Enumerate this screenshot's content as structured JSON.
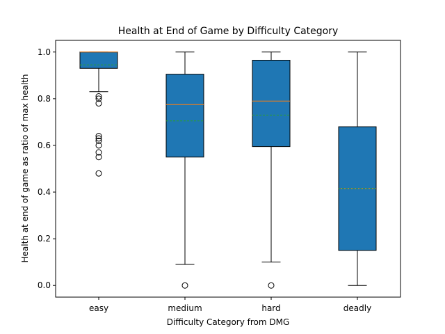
{
  "chart_data": {
    "type": "box",
    "title": "Health at End of Game by Difficulty Category",
    "xlabel": "Difficulty Category from DMG",
    "ylabel": "Health at end of game as ratio of max health",
    "ylim": [
      -0.05,
      1.05
    ],
    "yticks": [
      "0.0",
      "0.2",
      "0.4",
      "0.6",
      "0.8",
      "1.0"
    ],
    "grid": false,
    "colors": {
      "box_fill": "#1f77b4",
      "median": "#ff7f0e",
      "mean": "#2ca02c",
      "line": "#000000"
    },
    "categories": [
      "easy",
      "medium",
      "hard",
      "deadly"
    ],
    "boxes": [
      {
        "category": "easy",
        "whisker_low": 0.83,
        "q1": 0.93,
        "median": 1.0,
        "mean": 0.945,
        "q3": 1.0,
        "whisker_high": 1.0,
        "outliers": [
          0.81,
          0.8,
          0.78,
          0.64,
          0.63,
          0.62,
          0.6,
          0.57,
          0.55,
          0.48
        ]
      },
      {
        "category": "medium",
        "whisker_low": 0.09,
        "q1": 0.55,
        "median": 0.775,
        "mean": 0.705,
        "q3": 0.905,
        "whisker_high": 1.0,
        "outliers": [
          0.0
        ]
      },
      {
        "category": "hard",
        "whisker_low": 0.1,
        "q1": 0.595,
        "median": 0.79,
        "mean": 0.73,
        "q3": 0.965,
        "whisker_high": 1.0,
        "outliers": [
          0.0
        ]
      },
      {
        "category": "deadly",
        "whisker_low": 0.0,
        "q1": 0.15,
        "median": 0.415,
        "mean": 0.415,
        "q3": 0.68,
        "whisker_high": 1.0,
        "outliers": []
      }
    ]
  }
}
